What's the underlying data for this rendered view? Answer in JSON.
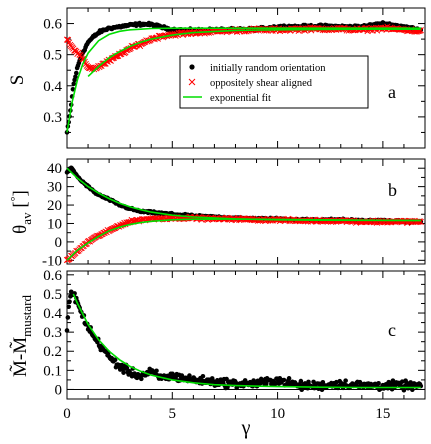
{
  "chart_data": [
    {
      "type": "scatter",
      "panel_label": "a",
      "ylabel": "S",
      "xlim": [
        0,
        17
      ],
      "ylim": [
        0.2,
        0.65
      ],
      "y_ticks": [
        0.3,
        0.4,
        0.5,
        0.6
      ],
      "y_tick_labels": [
        "0.3",
        "0.4",
        "0.5",
        "0.6"
      ],
      "grid": false,
      "legend_position": "center-right",
      "legend": [
        {
          "label": "initially random orientation",
          "marker": "filled-circle",
          "color": "#000000"
        },
        {
          "label": "oppositely shear aligned",
          "marker": "x",
          "color": "#ff0000"
        },
        {
          "label": "exponential fit",
          "marker": "line",
          "color": "#00dd00"
        }
      ],
      "series": [
        {
          "name": "initially random orientation",
          "marker": "filled-circle",
          "color": "#000000",
          "x": [
            0.0,
            0.1,
            0.2,
            0.3,
            0.5,
            0.7,
            1.0,
            1.3,
            1.6,
            2.0,
            2.5,
            3.0,
            3.5,
            4.0,
            5.0,
            6.0,
            7.0,
            8.0,
            9.0,
            10.0,
            11.0,
            12.0,
            13.0,
            14.0,
            15.0,
            16.0,
            16.8
          ],
          "y": [
            0.25,
            0.29,
            0.34,
            0.4,
            0.46,
            0.5,
            0.54,
            0.56,
            0.575,
            0.585,
            0.59,
            0.595,
            0.598,
            0.597,
            0.58,
            0.578,
            0.58,
            0.58,
            0.582,
            0.59,
            0.59,
            0.592,
            0.59,
            0.59,
            0.6,
            0.59,
            0.58
          ]
        },
        {
          "name": "oppositely shear aligned",
          "marker": "x",
          "color": "#ff0000",
          "x": [
            0.0,
            0.2,
            0.4,
            0.6,
            0.8,
            1.0,
            1.3,
            1.6,
            2.0,
            2.5,
            3.0,
            3.5,
            4.0,
            4.5,
            5.0,
            6.0,
            7.0,
            8.0,
            9.0,
            10.0,
            11.0,
            12.0,
            13.0,
            14.0,
            15.0,
            16.0,
            16.8
          ],
          "y": [
            0.55,
            0.53,
            0.51,
            0.5,
            0.48,
            0.46,
            0.455,
            0.465,
            0.48,
            0.5,
            0.52,
            0.535,
            0.55,
            0.56,
            0.565,
            0.57,
            0.575,
            0.578,
            0.58,
            0.58,
            0.582,
            0.583,
            0.582,
            0.58,
            0.585,
            0.58,
            0.575
          ]
        },
        {
          "name": "exponential fit",
          "marker": "line",
          "color": "#00dd00",
          "x": [
            0.0,
            0.25,
            0.5,
            0.75,
            1.0,
            1.5,
            2.0,
            2.5,
            3.0,
            3.5,
            4.0,
            5.0,
            6.0,
            8.0,
            10.0,
            12.0,
            14.0,
            16.8
          ],
          "y": [
            0.25,
            0.35,
            0.42,
            0.47,
            0.505,
            0.545,
            0.565,
            0.575,
            0.58,
            0.582,
            0.584,
            0.585,
            0.585,
            0.585,
            0.585,
            0.585,
            0.585,
            0.585
          ]
        },
        {
          "name": "exponential fit",
          "marker": "line",
          "color": "#00dd00",
          "x": [
            1.0,
            1.5,
            2.0,
            2.5,
            3.0,
            3.5,
            4.0,
            5.0,
            6.0,
            8.0,
            10.0,
            12.0,
            14.0,
            16.8
          ],
          "y": [
            0.43,
            0.462,
            0.49,
            0.51,
            0.527,
            0.54,
            0.55,
            0.563,
            0.571,
            0.578,
            0.58,
            0.581,
            0.582,
            0.582
          ]
        }
      ]
    },
    {
      "type": "scatter",
      "panel_label": "b",
      "ylabel": "θav [°]",
      "xlim": [
        0,
        17
      ],
      "ylim": [
        -12,
        45
      ],
      "y_ticks": [
        -10,
        0,
        10,
        20,
        30,
        40
      ],
      "y_tick_labels": [
        "-10",
        "0",
        "10",
        "20",
        "30",
        "40"
      ],
      "grid": false,
      "series": [
        {
          "name": "initially random orientation",
          "marker": "filled-circle",
          "color": "#000000",
          "x": [
            0.0,
            0.2,
            0.4,
            0.6,
            0.8,
            1.0,
            1.3,
            1.6,
            2.0,
            2.5,
            3.0,
            3.5,
            4.0,
            5.0,
            6.0,
            7.0,
            8.0,
            9.0,
            10.0,
            11.0,
            12.0,
            13.0,
            14.0,
            15.0,
            16.0,
            16.8
          ],
          "y": [
            38,
            40,
            37,
            34,
            32,
            30,
            27,
            25,
            23,
            20,
            18,
            16.5,
            16,
            15,
            14,
            13.5,
            13,
            12.5,
            12.5,
            12,
            12,
            12,
            11.5,
            11.5,
            11,
            11
          ]
        },
        {
          "name": "oppositely shear aligned",
          "marker": "x",
          "color": "#ff0000",
          "x": [
            0.0,
            0.2,
            0.4,
            0.6,
            0.8,
            1.0,
            1.3,
            1.6,
            2.0,
            2.5,
            3.0,
            3.5,
            4.0,
            5.0,
            6.0,
            7.0,
            8.0,
            9.0,
            10.0,
            11.0,
            12.0,
            13.0,
            14.0,
            15.0,
            16.0,
            16.8
          ],
          "y": [
            -10,
            -8,
            -6,
            -4,
            -2,
            0,
            2,
            4,
            6,
            9,
            11,
            12,
            12.5,
            13,
            13,
            12.5,
            12.5,
            12,
            12,
            11.5,
            11.5,
            11.5,
            11,
            11,
            11,
            11
          ]
        },
        {
          "name": "exponential fit",
          "marker": "line",
          "color": "#00dd00",
          "x": [
            0.0,
            0.5,
            1.0,
            1.5,
            2.0,
            2.5,
            3.0,
            3.5,
            4.0,
            5.0,
            6.0,
            8.0,
            10.0,
            12.0,
            14.0,
            16.8
          ],
          "y": [
            40,
            34.5,
            30,
            26.5,
            23.5,
            21,
            19,
            17.5,
            16.2,
            14.5,
            13.5,
            12.5,
            12,
            11.8,
            11.7,
            11.6
          ]
        },
        {
          "name": "exponential fit",
          "marker": "line",
          "color": "#00dd00",
          "x": [
            0.0,
            0.5,
            1.0,
            1.5,
            2.0,
            2.5,
            3.0,
            3.5,
            4.0,
            5.0,
            6.0,
            8.0,
            10.0,
            12.0,
            14.0,
            16.8
          ],
          "y": [
            -10,
            -4.5,
            -0.5,
            3,
            6,
            8,
            9.5,
            10.5,
            11.2,
            12,
            12.3,
            12.4,
            12.2,
            12,
            11.8,
            11.6
          ]
        }
      ]
    },
    {
      "type": "scatter",
      "panel_label": "c",
      "ylabel": "M̃-M̃mustard",
      "xlabel": "γ",
      "xlim": [
        0,
        17
      ],
      "ylim": [
        -0.05,
        0.62
      ],
      "x_ticks": [
        0,
        5,
        10,
        15
      ],
      "x_tick_labels": [
        "0",
        "5",
        "10",
        "15"
      ],
      "y_ticks": [
        0,
        0.1,
        0.2,
        0.3,
        0.4,
        0.5,
        0.6
      ],
      "y_tick_labels": [
        "0",
        "0.1",
        "0.2",
        "0.3",
        "0.4",
        "0.5",
        "0.6"
      ],
      "grid": false,
      "reference_line_y": 0,
      "series": [
        {
          "name": "initially random orientation",
          "marker": "filled-circle",
          "color": "#000000",
          "x": [
            0.0,
            0.1,
            0.2,
            0.3,
            0.4,
            0.6,
            0.8,
            1.0,
            1.3,
            1.6,
            2.0,
            2.5,
            3.0,
            3.5,
            4.0,
            4.5,
            5.0,
            6.0,
            7.0,
            8.0,
            9.0,
            10.0,
            11.0,
            12.0,
            13.0,
            14.0,
            15.0,
            16.0,
            16.8
          ],
          "y": [
            0.3,
            0.45,
            0.5,
            0.51,
            0.48,
            0.42,
            0.37,
            0.33,
            0.27,
            0.23,
            0.17,
            0.12,
            0.09,
            0.07,
            0.09,
            0.06,
            0.07,
            0.05,
            0.04,
            0.03,
            0.03,
            0.05,
            0.02,
            0.02,
            0.03,
            0.02,
            0.02,
            0.02,
            0.02
          ]
        },
        {
          "name": "exponential fit",
          "marker": "line",
          "color": "#00dd00",
          "x": [
            0.3,
            0.5,
            1.0,
            1.5,
            2.0,
            2.5,
            3.0,
            3.5,
            4.0,
            5.0,
            6.0,
            7.0,
            8.0,
            10.0,
            12.0,
            14.0,
            16.8
          ],
          "y": [
            0.5,
            0.45,
            0.34,
            0.26,
            0.2,
            0.155,
            0.12,
            0.095,
            0.075,
            0.05,
            0.035,
            0.025,
            0.02,
            0.015,
            0.012,
            0.01,
            0.01
          ]
        }
      ]
    }
  ]
}
